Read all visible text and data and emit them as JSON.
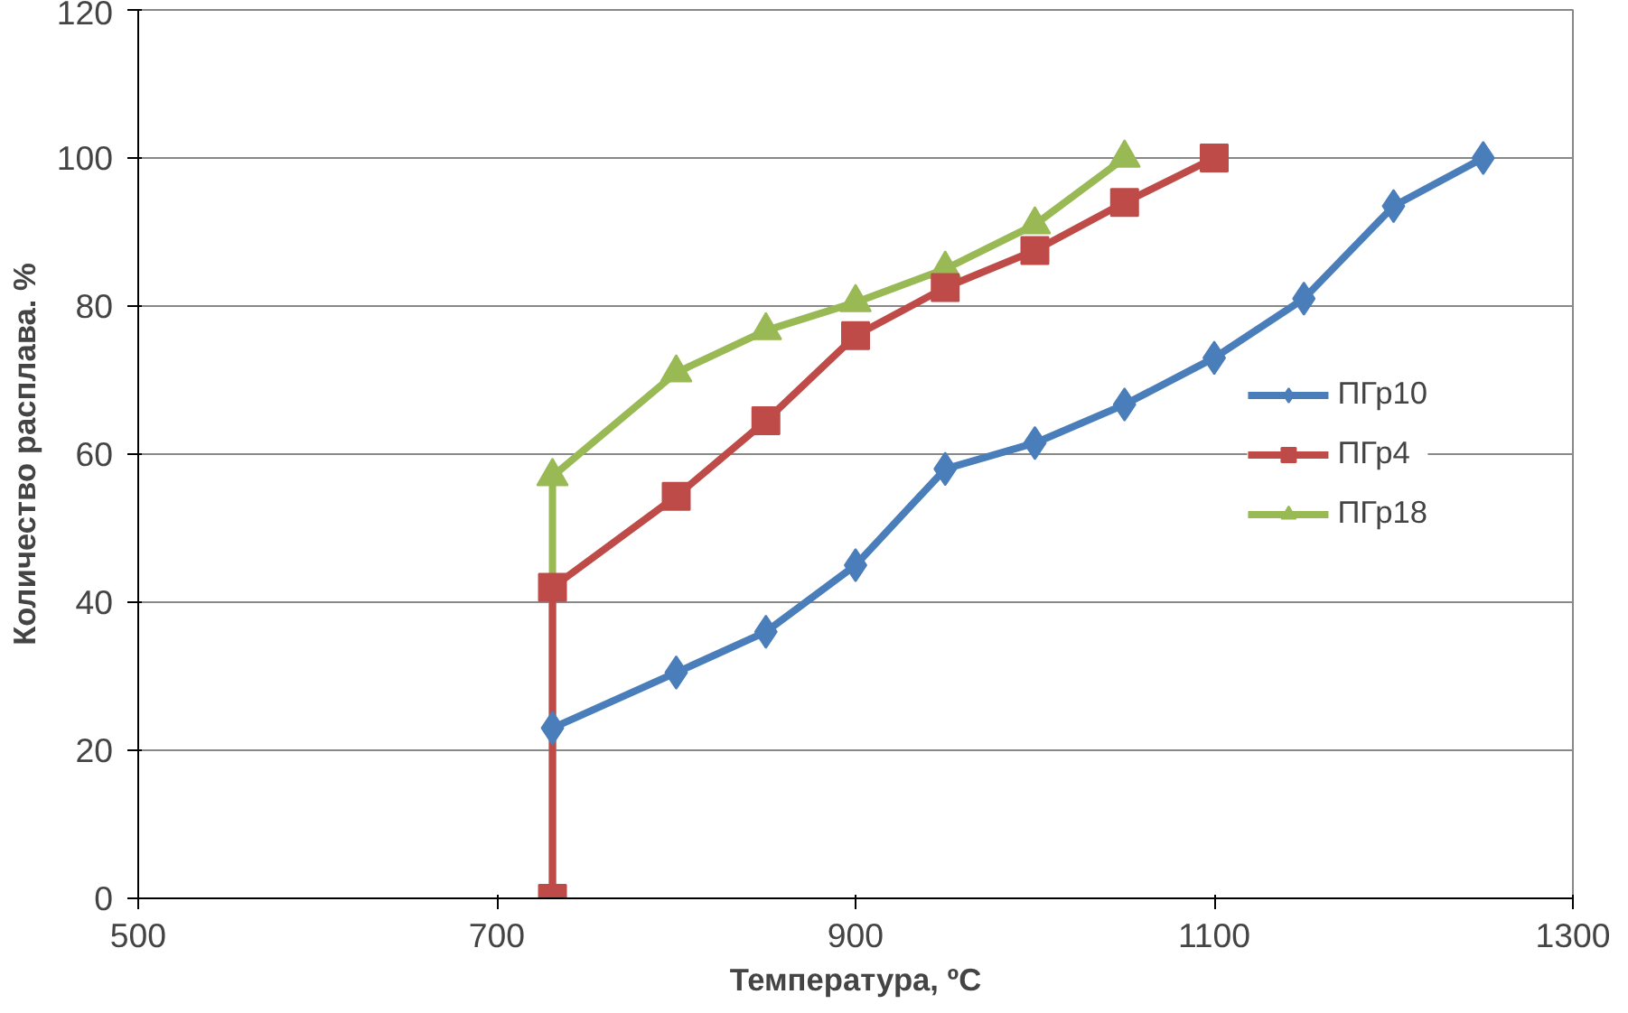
{
  "chart_data": {
    "type": "line",
    "xlabel": "Температура, ºC",
    "ylabel": "Количество расплава. %",
    "xlim": [
      500,
      1300
    ],
    "xticks": [
      500,
      700,
      900,
      1100,
      1300
    ],
    "ylim": [
      0,
      120
    ],
    "yticks": [
      0,
      20,
      40,
      60,
      80,
      100,
      120
    ],
    "grid": "y",
    "legend": "right",
    "line_style": "solid",
    "series": [
      {
        "name": "ПГр10",
        "color": "#4a7ebb",
        "marker": "diamond",
        "x": [
          731,
          800,
          850,
          900,
          950,
          1000,
          1050,
          1100,
          1150,
          1200,
          1250
        ],
        "values": [
          23,
          30.5,
          36,
          45,
          58,
          61.5,
          66.7,
          73,
          81,
          93.5,
          100
        ]
      },
      {
        "name": "ПГр4",
        "color": "#be4b48",
        "marker": "square",
        "x": [
          731,
          731,
          800,
          850,
          900,
          950,
          1000,
          1050,
          1100
        ],
        "values": [
          0,
          42,
          54.3,
          64.5,
          76,
          82.5,
          87.5,
          94,
          100
        ]
      },
      {
        "name": "ПГр18",
        "color": "#98b954",
        "marker": "triangle",
        "x": [
          731,
          731,
          800,
          850,
          900,
          950,
          1000,
          1050
        ],
        "values": [
          0,
          57,
          71,
          76.7,
          80.5,
          85,
          91,
          100
        ]
      }
    ]
  }
}
